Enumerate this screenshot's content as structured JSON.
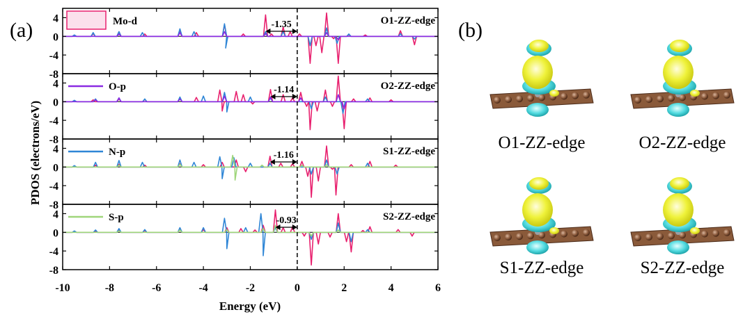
{
  "panel_a_label": "(a)",
  "panel_b_label": "(b)",
  "chart_data": {
    "type": "line",
    "xlabel": "Energy (eV)",
    "ylabel": "PDOS (electrons/eV)",
    "xlim": [
      -10,
      6
    ],
    "xticks": [
      -10,
      -8,
      -6,
      -4,
      -2,
      0,
      2,
      4,
      6
    ],
    "fermi_level": 0,
    "legend": [
      {
        "name": "Mo-d",
        "color": "#e8206e"
      },
      {
        "name": "O-p",
        "color": "#8a2be2"
      },
      {
        "name": "N-p",
        "color": "#2f86d6"
      },
      {
        "name": "S-p",
        "color": "#9fd67a"
      }
    ],
    "panels": [
      {
        "label": "O1-ZZ-edge",
        "ylim": [
          -8,
          6
        ],
        "yticks": [
          "4",
          "0",
          "-4",
          "-8"
        ],
        "gap": {
          "value": "-1.35",
          "from": -1.35,
          "to": 0
        },
        "series": [
          {
            "name": "Mo-d",
            "points": [
              [
                -9.5,
                0.2
              ],
              [
                -8.7,
                0.6
              ],
              [
                -7.6,
                1.0
              ],
              [
                -6.5,
                0.5
              ],
              [
                -5.0,
                1.3
              ],
              [
                -4.3,
                0.8
              ],
              [
                -3.1,
                2.5
              ],
              [
                -2.3,
                0.5
              ],
              [
                -1.35,
                4.6
              ],
              [
                -1.1,
                0.5
              ],
              [
                -0.6,
                2.0
              ],
              [
                -0.3,
                1.0
              ],
              [
                0.1,
                0.5
              ],
              [
                0.55,
                -5.8
              ],
              [
                0.8,
                -2.0
              ],
              [
                1.05,
                -3.5
              ],
              [
                1.25,
                5.0
              ],
              [
                1.55,
                -0.5
              ],
              [
                1.75,
                -5.8
              ],
              [
                2.2,
                0.4
              ],
              [
                2.9,
                0.3
              ],
              [
                4.4,
                1.2
              ],
              [
                5.0,
                -1.8
              ]
            ]
          },
          {
            "name": "N-p",
            "points": [
              [
                -9.5,
                0.3
              ],
              [
                -8.7,
                0.8
              ],
              [
                -7.6,
                1.0
              ],
              [
                -6.6,
                0.8
              ],
              [
                -5.0,
                1.6
              ],
              [
                -4.4,
                1.0
              ],
              [
                -3.1,
                2.7
              ],
              [
                -3.05,
                -2.5
              ],
              [
                -1.35,
                1.0
              ],
              [
                -0.6,
                1.0
              ],
              [
                0.55,
                -2.0
              ],
              [
                1.25,
                1.8
              ],
              [
                1.7,
                -1.5
              ],
              [
                2.2,
                0.5
              ],
              [
                4.4,
                0.6
              ],
              [
                5.0,
                -0.6
              ]
            ]
          },
          {
            "name": "O-p",
            "points": [
              [
                -7.6,
                0.5
              ],
              [
                -5.0,
                0.8
              ],
              [
                -3.1,
                1.0
              ],
              [
                -1.35,
                0.6
              ],
              [
                1.25,
                0.8
              ],
              [
                1.75,
                -0.8
              ]
            ]
          }
        ]
      },
      {
        "label": "O2-ZZ-edge",
        "ylim": [
          -8,
          6
        ],
        "yticks": [
          "4",
          "0",
          "-4",
          "-8"
        ],
        "gap": {
          "value": "-1.14",
          "from": -1.14,
          "to": 0
        },
        "series": [
          {
            "name": "Mo-d",
            "points": [
              [
                -9.5,
                0.2
              ],
              [
                -8.7,
                0.4
              ],
              [
                -7.6,
                0.6
              ],
              [
                -6.5,
                0.5
              ],
              [
                -5.0,
                0.8
              ],
              [
                -4.3,
                0.9
              ],
              [
                -3.3,
                2.5
              ],
              [
                -3.2,
                -2.0
              ],
              [
                -2.6,
                2.2
              ],
              [
                -2.3,
                1.5
              ],
              [
                -1.9,
                -0.5
              ],
              [
                -1.14,
                2.6
              ],
              [
                -0.6,
                1.5
              ],
              [
                -0.2,
                0.8
              ],
              [
                0.15,
                2.0
              ],
              [
                0.4,
                -1.0
              ],
              [
                0.55,
                -6.0
              ],
              [
                0.85,
                -2.0
              ],
              [
                1.2,
                2.5
              ],
              [
                1.5,
                -1.0
              ],
              [
                1.75,
                5.5
              ],
              [
                2.0,
                -5.8
              ],
              [
                2.4,
                0.6
              ],
              [
                3.1,
                0.8
              ],
              [
                4.0,
                0.4
              ]
            ]
          },
          {
            "name": "N-p",
            "points": [
              [
                -9.5,
                0.3
              ],
              [
                -8.6,
                0.6
              ],
              [
                -7.6,
                0.8
              ],
              [
                -6.5,
                0.6
              ],
              [
                -5.0,
                1.0
              ],
              [
                -4.0,
                1.2
              ],
              [
                -3.1,
                2.0
              ],
              [
                -3.0,
                -2.2
              ],
              [
                -2.0,
                1.0
              ],
              [
                -1.14,
                0.8
              ],
              [
                0.6,
                -1.5
              ],
              [
                1.2,
                1.0
              ],
              [
                1.95,
                -2.5
              ],
              [
                3.0,
                0.6
              ]
            ]
          },
          {
            "name": "O-p",
            "points": [
              [
                -8.6,
                0.4
              ],
              [
                -7.6,
                0.8
              ],
              [
                -5.0,
                0.6
              ],
              [
                -3.1,
                1.2
              ],
              [
                -1.14,
                1.0
              ],
              [
                0.15,
                0.8
              ],
              [
                1.75,
                1.5
              ],
              [
                2.0,
                -1.5
              ]
            ]
          }
        ]
      },
      {
        "label": "S1-ZZ-edge",
        "ylim": [
          -8,
          6
        ],
        "yticks": [
          "4",
          "0",
          "-4",
          "-8"
        ],
        "gap": {
          "value": "-1.16",
          "from": -1.16,
          "to": 0
        },
        "series": [
          {
            "name": "Mo-d",
            "points": [
              [
                -9.5,
                0.2
              ],
              [
                -8.6,
                0.4
              ],
              [
                -7.6,
                0.6
              ],
              [
                -6.5,
                0.4
              ],
              [
                -5.0,
                0.7
              ],
              [
                -4.0,
                0.5
              ],
              [
                -3.2,
                1.0
              ],
              [
                -2.6,
                1.5
              ],
              [
                -2.2,
                -1.0
              ],
              [
                -1.16,
                2.3
              ],
              [
                -0.7,
                0.8
              ],
              [
                -0.2,
                0.7
              ],
              [
                0.2,
                1.2
              ],
              [
                0.45,
                -2.0
              ],
              [
                0.6,
                -6.5
              ],
              [
                0.9,
                -3.0
              ],
              [
                1.25,
                4.5
              ],
              [
                1.5,
                -0.5
              ],
              [
                1.65,
                -6.0
              ],
              [
                2.3,
                0.5
              ],
              [
                3.1,
                1.2
              ],
              [
                4.2,
                0.4
              ]
            ]
          },
          {
            "name": "N-p",
            "points": [
              [
                -9.5,
                0.3
              ],
              [
                -8.6,
                1.0
              ],
              [
                -7.6,
                1.4
              ],
              [
                -6.6,
                1.0
              ],
              [
                -5.0,
                1.5
              ],
              [
                -4.4,
                1.0
              ],
              [
                -3.3,
                2.2
              ],
              [
                -3.2,
                -2.5
              ],
              [
                -2.7,
                2.0
              ],
              [
                -2.0,
                0.8
              ],
              [
                -1.16,
                0.8
              ],
              [
                0.6,
                -1.5
              ],
              [
                1.25,
                1.5
              ],
              [
                1.7,
                -1.5
              ],
              [
                3.0,
                0.8
              ]
            ]
          },
          {
            "name": "S-p",
            "points": [
              [
                -7.6,
                0.4
              ],
              [
                -5.0,
                0.6
              ],
              [
                -2.75,
                2.5
              ],
              [
                -2.65,
                -2.8
              ],
              [
                -1.5,
                0.4
              ],
              [
                0.2,
                0.4
              ],
              [
                1.25,
                0.5
              ]
            ]
          }
        ]
      },
      {
        "label": "S2-ZZ-edge",
        "ylim": [
          -8,
          6
        ],
        "yticks": [
          "4",
          "0",
          "-4",
          "-8"
        ],
        "gap": {
          "value": "-0.93",
          "from": -0.93,
          "to": 0
        },
        "series": [
          {
            "name": "Mo-d",
            "points": [
              [
                -9.5,
                0.2
              ],
              [
                -8.6,
                0.3
              ],
              [
                -7.6,
                0.5
              ],
              [
                -6.5,
                0.4
              ],
              [
                -5.0,
                0.6
              ],
              [
                -4.0,
                0.6
              ],
              [
                -3.0,
                1.0
              ],
              [
                -2.4,
                0.8
              ],
              [
                -1.8,
                0.5
              ],
              [
                -1.45,
                1.5
              ],
              [
                -0.93,
                4.8
              ],
              [
                -0.6,
                1.0
              ],
              [
                -0.2,
                1.2
              ],
              [
                0.3,
                -0.8
              ],
              [
                0.6,
                -7.0
              ],
              [
                0.9,
                -2.5
              ],
              [
                1.4,
                -1.0
              ],
              [
                1.75,
                4.0
              ],
              [
                2.1,
                -2.0
              ],
              [
                2.3,
                -4.2
              ],
              [
                2.8,
                0.4
              ],
              [
                3.1,
                1.2
              ],
              [
                4.3,
                0.6
              ],
              [
                4.9,
                -0.8
              ]
            ]
          },
          {
            "name": "N-p",
            "points": [
              [
                -9.5,
                0.3
              ],
              [
                -8.6,
                0.5
              ],
              [
                -7.6,
                0.8
              ],
              [
                -6.5,
                0.6
              ],
              [
                -5.0,
                1.0
              ],
              [
                -4.0,
                1.0
              ],
              [
                -3.1,
                3.0
              ],
              [
                -3.0,
                -3.5
              ],
              [
                -2.2,
                1.0
              ],
              [
                -1.55,
                4.0
              ],
              [
                -1.45,
                -5.0
              ],
              [
                -0.93,
                1.0
              ],
              [
                0.6,
                -1.5
              ],
              [
                1.75,
                2.0
              ],
              [
                2.3,
                -2.0
              ],
              [
                3.0,
                0.6
              ]
            ]
          },
          {
            "name": "S-p",
            "points": [
              [
                -7.6,
                0.3
              ],
              [
                -5.0,
                0.5
              ],
              [
                -3.0,
                0.6
              ],
              [
                -1.45,
                0.8
              ],
              [
                -0.93,
                1.5
              ],
              [
                0.6,
                -0.8
              ],
              [
                1.75,
                0.5
              ]
            ]
          }
        ]
      }
    ]
  },
  "structures": [
    {
      "label": "O1-ZZ-edge"
    },
    {
      "label": "O2-ZZ-edge"
    },
    {
      "label": "S1-ZZ-edge"
    },
    {
      "label": "S2-ZZ-edge"
    }
  ]
}
